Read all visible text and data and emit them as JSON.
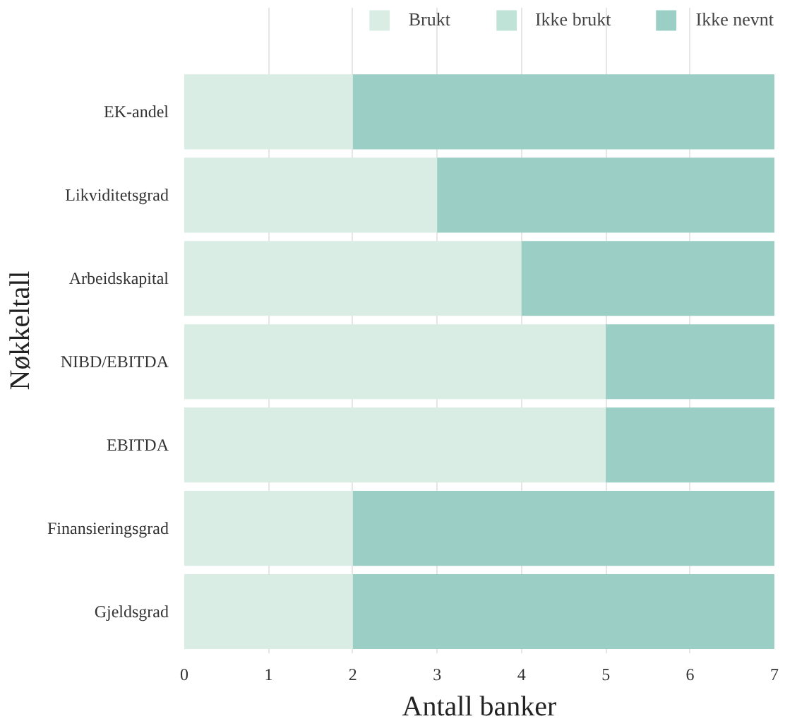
{
  "chart_data": {
    "type": "bar",
    "orientation": "horizontal",
    "stacked": true,
    "xlabel": "Antall banker",
    "ylabel": "Nøkkeltall",
    "categories": [
      "EK-andel",
      "Likviditetsgrad",
      "Arbeidskapital",
      "NIBD/EBITDA",
      "EBITDA",
      "Finansieringsgrad",
      "Gjeldsgrad"
    ],
    "series": [
      {
        "name": "Brukt",
        "color": "#d9ede5",
        "values": [
          2,
          3,
          4,
          5,
          5,
          2,
          2
        ]
      },
      {
        "name": "Ikke brukt",
        "color": "#bfe3d6",
        "values": [
          0,
          0,
          0,
          0,
          0,
          0,
          0
        ]
      },
      {
        "name": "Ikke nevnt",
        "color": "#9bcfc5",
        "values": [
          5,
          4,
          3,
          2,
          2,
          5,
          5
        ]
      }
    ],
    "xlim": [
      0,
      7
    ],
    "xticks": [
      0,
      1,
      2,
      3,
      4,
      5,
      6,
      7
    ],
    "grid": "x",
    "legend": "top"
  }
}
